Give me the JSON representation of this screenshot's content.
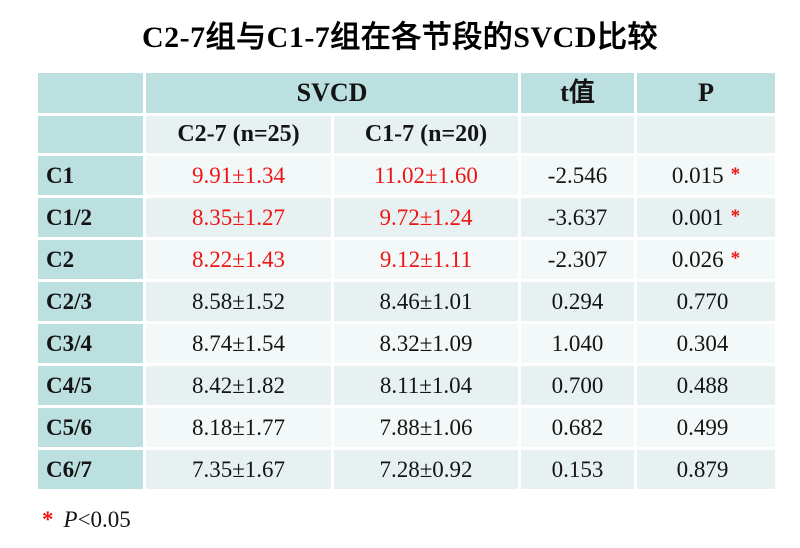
{
  "page": {
    "title": "C2-7组与C1-7组在各节段的SVCD比较"
  },
  "colors": {
    "header_bg": "#bcdfe0",
    "band_a": "#f3f9f9",
    "band_b": "#e7f1f1",
    "highlight_red": "#ee1515",
    "text_color": "#141414"
  },
  "table": {
    "header": {
      "svcd": "SVCD",
      "t": "t值",
      "p": "P"
    },
    "subheader": {
      "group1": "C2-7 (n=25)",
      "group2": "C1-7 (n=20)"
    },
    "rows": [
      {
        "segment": "C1",
        "c27": "9.91±1.34",
        "c17": "11.02±1.60",
        "t": "-2.546",
        "p": "0.015",
        "sig": "*",
        "highlight": true
      },
      {
        "segment": "C1/2",
        "c27": "8.35±1.27",
        "c17": "9.72±1.24",
        "t": "-3.637",
        "p": "0.001",
        "sig": "*",
        "highlight": true
      },
      {
        "segment": "C2",
        "c27": "8.22±1.43",
        "c17": "9.12±1.11",
        "t": "-2.307",
        "p": "0.026",
        "sig": "*",
        "highlight": true
      },
      {
        "segment": "C2/3",
        "c27": "8.58±1.52",
        "c17": "8.46±1.01",
        "t": "0.294",
        "p": "0.770",
        "sig": "",
        "highlight": false
      },
      {
        "segment": "C3/4",
        "c27": "8.74±1.54",
        "c17": "8.32±1.09",
        "t": "1.040",
        "p": "0.304",
        "sig": "",
        "highlight": false
      },
      {
        "segment": "C4/5",
        "c27": "8.42±1.82",
        "c17": "8.11±1.04",
        "t": "0.700",
        "p": "0.488",
        "sig": "",
        "highlight": false
      },
      {
        "segment": "C5/6",
        "c27": "8.18±1.77",
        "c17": "7.88±1.06",
        "t": "0.682",
        "p": "0.499",
        "sig": "",
        "highlight": false
      },
      {
        "segment": "C6/7",
        "c27": "7.35±1.67",
        "c17": "7.28±0.92",
        "t": "0.153",
        "p": "0.879",
        "sig": "",
        "highlight": false
      }
    ]
  },
  "footnote": {
    "marker": "*",
    "p_symbol": "P",
    "condition": "<0.05"
  }
}
